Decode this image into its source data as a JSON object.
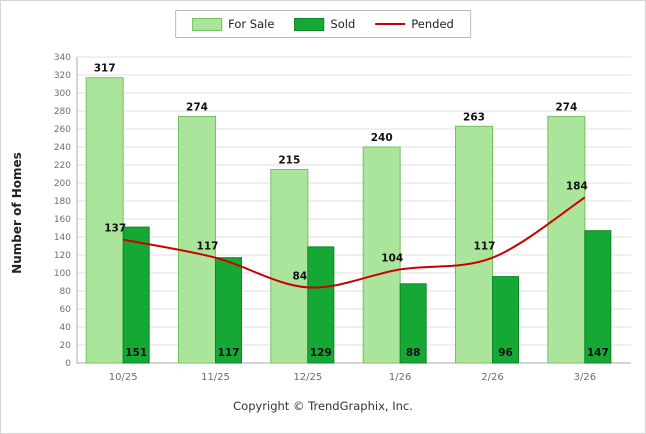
{
  "ylabel": "Number of Homes",
  "footer": "Copyright © TrendGraphix, Inc.",
  "colors": {
    "for_sale_fill": "#abe59b",
    "for_sale_border": "#74c25e",
    "sold_fill": "#16a835",
    "sold_border": "#0c8526",
    "pended_line": "#cc0000",
    "grid": "#e0e0e0",
    "axis": "#a8a8a8",
    "tick_text": "#6e6e6e",
    "value_text": "#111111"
  },
  "chart_data": {
    "type": "bar",
    "subtype": "grouped-bars-with-line",
    "categories": [
      "10/25",
      "11/25",
      "12/25",
      "1/26",
      "2/26",
      "3/26"
    ],
    "series": [
      {
        "name": "For Sale",
        "type": "bar",
        "color": "#abe59b",
        "values": [
          317,
          274,
          215,
          240,
          263,
          274
        ]
      },
      {
        "name": "Sold",
        "type": "bar",
        "color": "#16a835",
        "values": [
          151,
          117,
          129,
          88,
          96,
          147
        ]
      },
      {
        "name": "Pended",
        "type": "line",
        "color": "#cc0000",
        "values": [
          137,
          117,
          84,
          104,
          117,
          184
        ]
      }
    ],
    "title": "",
    "xlabel": "",
    "ylabel": "Number of Homes",
    "ylim": [
      0,
      340
    ],
    "ytick_step": 20,
    "grid": true,
    "legend_position": "top"
  }
}
